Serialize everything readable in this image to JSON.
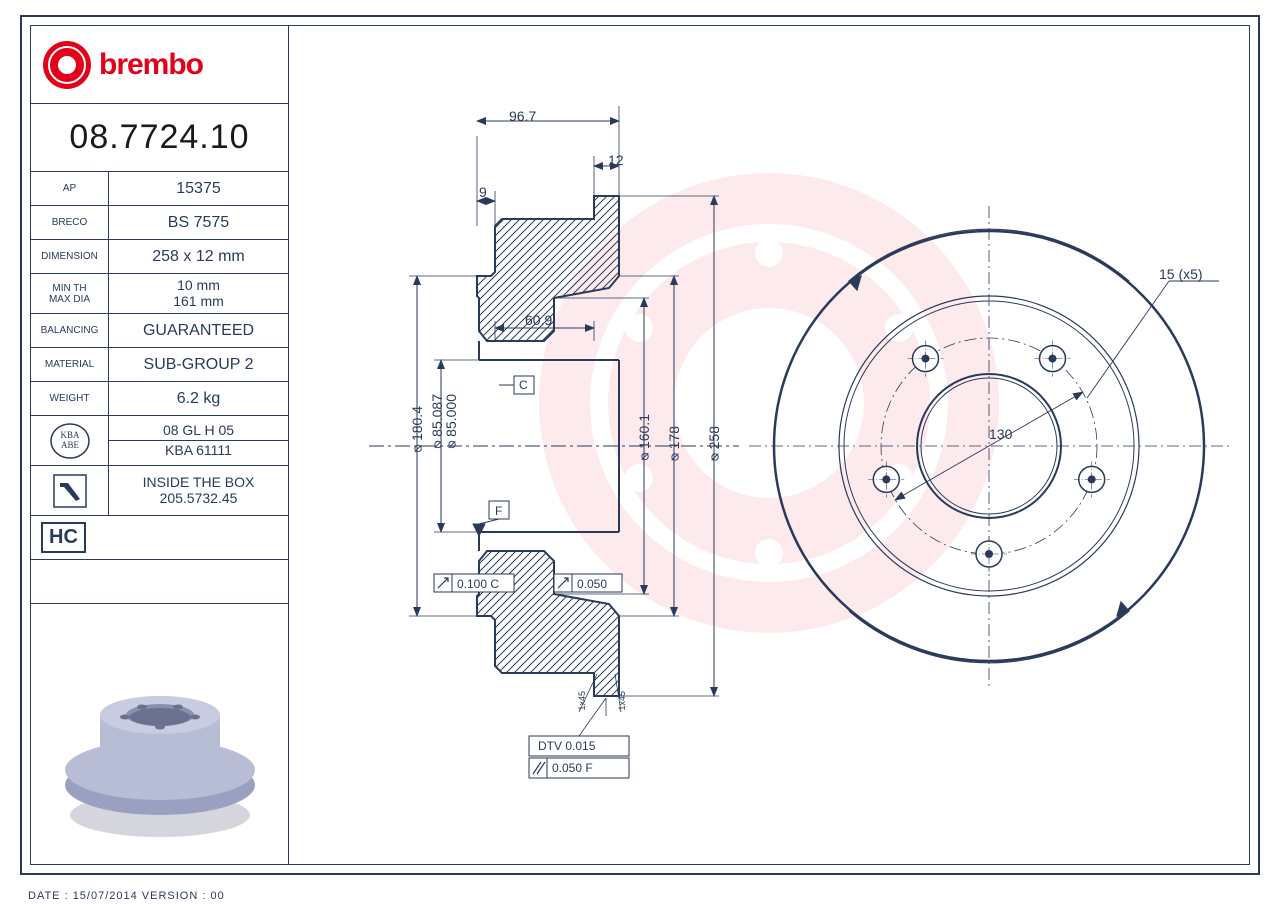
{
  "brand": "brembo",
  "brand_color": "#e2001a",
  "line_color": "#2a3a5a",
  "part_number": "08.7724.10",
  "specs": [
    {
      "label": "AP",
      "value": "15375"
    },
    {
      "label": "BRECO",
      "value": "BS 7575"
    },
    {
      "label": "DIMENSION",
      "value": "258 x 12 mm"
    },
    {
      "label": "MIN TH\nMAX DIA",
      "value": "10 mm\n161 mm"
    },
    {
      "label": "BALANCING",
      "value": "GUARANTEED"
    },
    {
      "label": "MATERIAL",
      "value": "SUB-GROUP 2"
    },
    {
      "label": "WEIGHT",
      "value": "6.2 kg"
    }
  ],
  "kba": {
    "line1": "08 GL H 05",
    "line2": "KBA 61111",
    "badge": "KBA\nABE"
  },
  "inside_box": {
    "line1": "INSIDE THE BOX",
    "line2": "205.5732.45"
  },
  "hc": "HC",
  "footer": "DATE : 15/07/2014 VERSION : 00",
  "section_view": {
    "dim_top_width": "96.7",
    "dim_thickness": "12",
    "dim_step": "9",
    "dim_inner": "60.9",
    "dia_outer_step": "⌀180.4",
    "dia_bore_max": "⌀85.087",
    "dia_bore_min": "⌀85.000",
    "dia_hub": "⌀160.1",
    "dia_flange": "⌀178",
    "dia_disc": "⌀258",
    "datum_c": "C",
    "datum_f": "F",
    "tol_left": "0.100 C",
    "tol_right": "0.050",
    "dtv": "DTV 0.015",
    "flatness": "0.050 F",
    "chamfer1": "1x45",
    "chamfer2": "1x45"
  },
  "front_view": {
    "bolt_spec": "15 (x5)",
    "pcd": "130",
    "bolt_count": 5
  },
  "colors": {
    "hatch": "#2a3a5a",
    "bg": "#ffffff",
    "render_body": "#b8bdd6",
    "render_shadow": "#7a80a0"
  }
}
